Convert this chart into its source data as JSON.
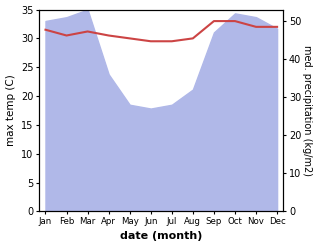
{
  "months": [
    "Jan",
    "Feb",
    "Mar",
    "Apr",
    "May",
    "Jun",
    "Jul",
    "Aug",
    "Sep",
    "Oct",
    "Nov",
    "Dec"
  ],
  "month_indices": [
    0,
    1,
    2,
    3,
    4,
    5,
    6,
    7,
    8,
    9,
    10,
    11
  ],
  "max_temp": [
    31.5,
    30.5,
    31.2,
    30.5,
    30.0,
    29.5,
    29.5,
    30.0,
    33.0,
    33.0,
    32.0,
    32.0
  ],
  "precipitation": [
    50,
    51,
    53,
    36,
    28,
    27,
    28,
    32,
    47,
    52,
    51,
    48
  ],
  "temp_color": "#cc4444",
  "precip_color": "#b0b8e8",
  "ylim_left": [
    0,
    35
  ],
  "ylim_right": [
    0,
    53
  ],
  "yticks_left": [
    0,
    5,
    10,
    15,
    20,
    25,
    30,
    35
  ],
  "yticks_right": [
    0,
    10,
    20,
    30,
    40,
    50
  ],
  "ylabel_left": "max temp (C)",
  "ylabel_right": "med. precipitation (kg/m2)",
  "xlabel": "date (month)",
  "temp_linewidth": 1.5,
  "bg_color": "#ffffff"
}
